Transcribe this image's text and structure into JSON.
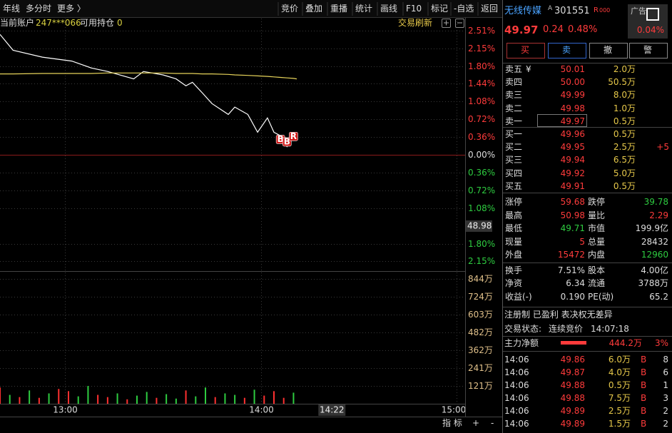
{
  "toolbar": {
    "left": [
      "年线",
      "多分时",
      "更多 〉"
    ],
    "right": [
      "竞价",
      "叠加",
      "重播",
      "统计",
      "画线",
      "F10",
      "标记",
      "-自选",
      "返回"
    ]
  },
  "account": {
    "label": "当前账户",
    "id": "247***066",
    "holdings_label": "可用持仓",
    "holdings": "0",
    "refresh": "交易刷新"
  },
  "chart_data": [
    {
      "type": "line",
      "x": [
        "11:10",
        "11:14",
        "11:23",
        "13:02",
        "13:08",
        "13:13",
        "13:21",
        "13:24",
        "13:30",
        "13:34",
        "13:37",
        "13:39",
        "13:42",
        "13:45",
        "13:50",
        "13:52",
        "13:56",
        "13:59",
        "14:02",
        "14:04",
        "14:06",
        "14:08",
        "14:10",
        "14:11"
      ],
      "series": [
        {
          "color": "#ffffff",
          "values": [
            2.44,
            2.12,
            1.98,
            1.9,
            1.76,
            1.69,
            1.54,
            1.69,
            1.62,
            1.54,
            1.4,
            1.47,
            1.26,
            1.04,
            0.82,
            0.97,
            0.82,
            0.46,
            0.75,
            0.46,
            0.39,
            0.17,
            0.36,
            0.42
          ]
        },
        {
          "color": "#e6d35a",
          "values": [
            1.64,
            1.64,
            1.65,
            1.65,
            1.65,
            1.66,
            1.66,
            1.66,
            1.66,
            1.65,
            1.65,
            1.65,
            1.64,
            1.64,
            1.63,
            1.62,
            1.61,
            1.6,
            1.59,
            1.58,
            1.57,
            1.56,
            1.55,
            1.54
          ]
        }
      ],
      "xlim": [
        "11:10",
        "15:00"
      ],
      "xticks": [
        "13:00",
        "14:00",
        "15:00"
      ],
      "ylim": [
        -2.35,
        2.66
      ],
      "yticks": [
        {
          "value": 2.51,
          "label": "2.51%"
        },
        {
          "value": 2.15,
          "label": "2.15%"
        },
        {
          "value": 1.8,
          "label": "1.80%"
        },
        {
          "value": 1.44,
          "label": "1.44%"
        },
        {
          "value": 1.08,
          "label": "1.08%"
        },
        {
          "value": 0.72,
          "label": "0.72%"
        },
        {
          "value": 0.36,
          "label": "0.36%"
        },
        {
          "value": 0,
          "label": "0.00%"
        },
        {
          "value": -0.36,
          "label": "0.36%"
        },
        {
          "value": -0.72,
          "label": "0.72%"
        },
        {
          "value": -1.08,
          "label": "1.08%"
        },
        {
          "value": -1.8,
          "label": "1.80%"
        },
        {
          "value": -2.15,
          "label": "2.15%"
        }
      ],
      "grid": true,
      "markers": [
        {
          "x": "14:06",
          "y": 0.3,
          "label": "B"
        },
        {
          "x": "14:08",
          "y": 0.25,
          "label": "B"
        },
        {
          "x": "14:10",
          "y": 0.36,
          "label": "R"
        }
      ],
      "cursor": {
        "price": 48.98,
        "pct": -1.44,
        "time": "14:22"
      }
    },
    {
      "type": "bar",
      "x": [
        "11:10",
        "11:13",
        "11:16",
        "11:19",
        "11:22",
        "11:25",
        "11:28",
        "13:01",
        "13:04",
        "13:07",
        "13:10",
        "13:13",
        "13:16",
        "13:19",
        "13:22",
        "13:25",
        "13:28",
        "13:31",
        "13:34",
        "13:37",
        "13:40",
        "13:43",
        "13:46",
        "13:49",
        "13:52",
        "13:55",
        "13:58",
        "14:01",
        "14:04",
        "14:07",
        "14:10"
      ],
      "values": [
        110,
        60,
        45,
        90,
        40,
        70,
        100,
        85,
        50,
        120,
        60,
        45,
        70,
        30,
        55,
        80,
        40,
        65,
        35,
        90,
        50,
        110,
        45,
        70,
        60,
        40,
        95,
        55,
        85,
        40,
        75
      ],
      "colors": [
        "#ff3030",
        "#2ecc40",
        "#ff3030",
        "#2ecc40",
        "#ff3030",
        "#2ecc40",
        "#ff3030",
        "#ff3030",
        "#2ecc40",
        "#2ecc40",
        "#ff3030",
        "#ff3030",
        "#2ecc40",
        "#ff3030",
        "#2ecc40",
        "#2ecc40",
        "#ff3030",
        "#2ecc40",
        "#2ecc40",
        "#ff3030",
        "#2ecc40",
        "#2ecc40",
        "#ff3030",
        "#2ecc40",
        "#2ecc40",
        "#ff3030",
        "#2ecc40",
        "#ff3030",
        "#ff3030",
        "#ff3030",
        "#2ecc40"
      ],
      "xlim": [
        "11:10",
        "15:00"
      ],
      "ylim": [
        0,
        882
      ],
      "yticks": [
        {
          "value": 844,
          "label": "844万"
        },
        {
          "value": 724,
          "label": "724万"
        },
        {
          "value": 603,
          "label": "603万"
        },
        {
          "value": 482,
          "label": "482万"
        },
        {
          "value": 362,
          "label": "362万"
        },
        {
          "value": 241,
          "label": "241万"
        },
        {
          "value": 121,
          "label": "121万"
        }
      ]
    }
  ],
  "quote": {
    "name": "无线传媒",
    "flag": "A",
    "code": "301551",
    "badge": "R",
    "badge_sub": "000",
    "ad": "广告",
    "ad_pct": "0.04%",
    "price": "49.97",
    "change": "0.24",
    "change_pct": "0.48%",
    "buttons": [
      "买",
      "卖",
      "撤",
      "警"
    ],
    "currency_icon": "¥",
    "asks": [
      {
        "label": "卖五",
        "price": "50.01",
        "vol": "2.0万"
      },
      {
        "label": "卖四",
        "price": "50.00",
        "vol": "50.5万"
      },
      {
        "label": "卖三",
        "price": "49.99",
        "vol": "8.0万"
      },
      {
        "label": "卖二",
        "price": "49.98",
        "vol": "1.0万"
      },
      {
        "label": "卖一",
        "price": "49.97",
        "vol": "0.5万"
      }
    ],
    "bids": [
      {
        "label": "买一",
        "price": "49.96",
        "vol": "0.5万"
      },
      {
        "label": "买二",
        "price": "49.95",
        "vol": "2.5万",
        "delta": "+5"
      },
      {
        "label": "买三",
        "price": "49.94",
        "vol": "6.5万"
      },
      {
        "label": "买四",
        "price": "49.92",
        "vol": "5.0万"
      },
      {
        "label": "买五",
        "price": "49.91",
        "vol": "0.5万"
      }
    ],
    "stats": [
      [
        "涨停",
        "59.68",
        "跌停",
        "39.78"
      ],
      [
        "最高",
        "50.98",
        "量比",
        "2.29"
      ],
      [
        "最低",
        "49.71",
        "市值",
        "199.9亿"
      ],
      [
        "现量",
        "5",
        "总量",
        "28432"
      ],
      [
        "外盘",
        "15472",
        "内盘",
        "12960"
      ],
      [
        "换手",
        "7.51%",
        "股本",
        "4.00亿"
      ],
      [
        "净资",
        "6.34",
        "流通",
        "3788万"
      ],
      [
        "收益(-)",
        "0.190",
        "PE(动)",
        "65.2"
      ]
    ],
    "tags": "注册制 已盈利 表决权无差异",
    "status_label": "交易状态:",
    "status": "连续竞价",
    "status_time": "14:07:18",
    "flow_label": "主力净额",
    "flow": "444.2万",
    "flow_pct": "3%",
    "trades": [
      [
        "14:06",
        "49.86",
        "6.0万",
        "B",
        "8"
      ],
      [
        "14:06",
        "49.87",
        "4.0万",
        "B",
        "6"
      ],
      [
        "14:06",
        "49.88",
        "0.5万",
        "B",
        "1"
      ],
      [
        "14:06",
        "49.88",
        "7.5万",
        "B",
        "3"
      ],
      [
        "14:06",
        "49.89",
        "2.5万",
        "B",
        "2"
      ],
      [
        "14:06",
        "49.89",
        "1.5万",
        "B",
        "2"
      ]
    ]
  },
  "footer": {
    "buttons": [
      "指 标",
      "+",
      "-"
    ]
  }
}
